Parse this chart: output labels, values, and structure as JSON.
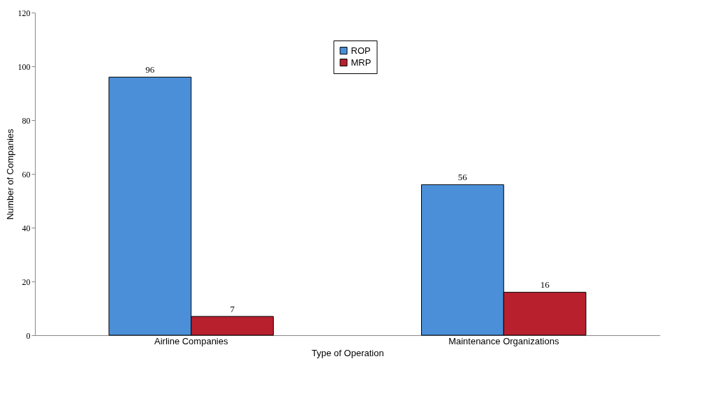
{
  "chart_data": {
    "type": "bar",
    "xlabel": "Type of Operation",
    "ylabel": "Number of Companies",
    "categories": [
      "Airline Companies",
      "Maintenance Organizations"
    ],
    "series": [
      {
        "name": "ROP",
        "color": "#4a8fd8",
        "values": [
          96,
          56
        ]
      },
      {
        "name": "MRP",
        "color": "#b8202e",
        "values": [
          7,
          16
        ]
      }
    ],
    "ylim": [
      0,
      120
    ],
    "yticks": [
      0,
      20,
      40,
      60,
      80,
      100,
      120
    ],
    "grid": false,
    "legend": "top",
    "data_labels": true
  }
}
